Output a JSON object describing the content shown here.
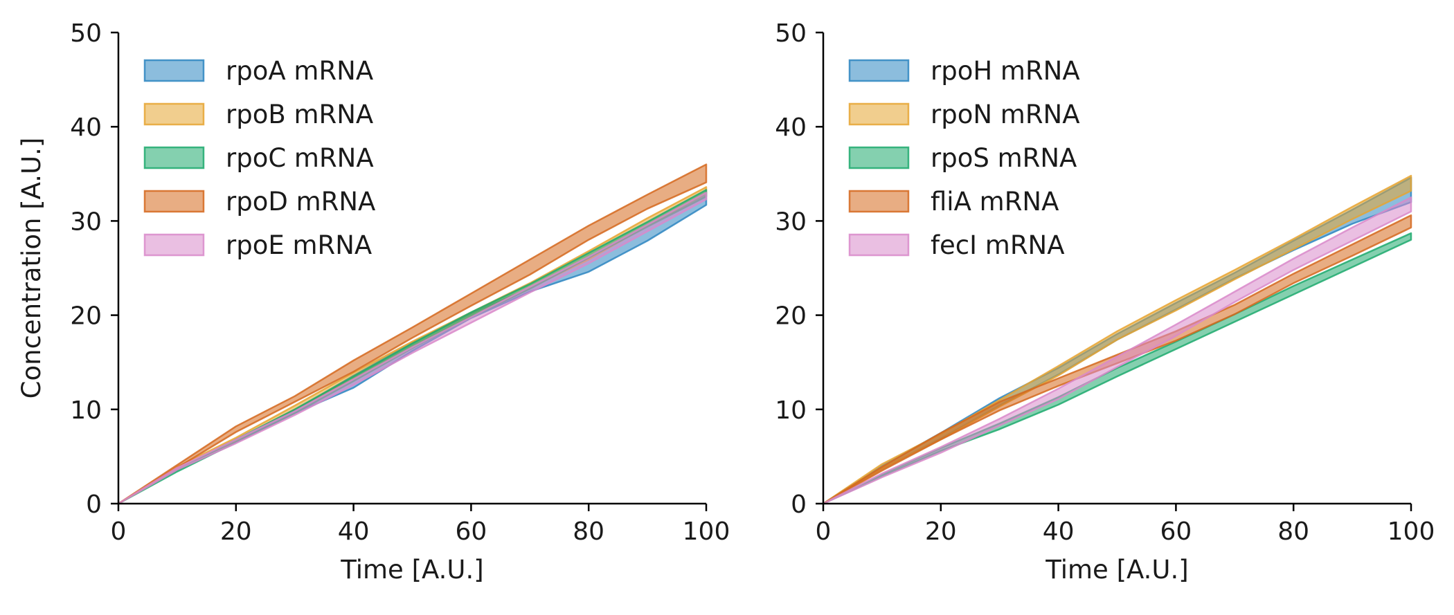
{
  "chart_data": [
    {
      "type": "area",
      "title": "",
      "xlabel": "Time [A.U.]",
      "ylabel": "Concentration [A.U.]",
      "xlim": [
        0,
        100
      ],
      "ylim": [
        0,
        50
      ],
      "xticks": [
        "0",
        "20",
        "40",
        "60",
        "80",
        "100"
      ],
      "yticks": [
        "0",
        "10",
        "20",
        "30",
        "40",
        "50"
      ],
      "grid": false,
      "legend_position": "top-left",
      "x": [
        0,
        10,
        20,
        30,
        40,
        50,
        60,
        70,
        80,
        90,
        100
      ],
      "series": [
        {
          "name": "rpoA mRNA",
          "color": "#2E86C1",
          "lower": [
            0,
            3.6,
            6.5,
            9.6,
            12.3,
            16.2,
            19.7,
            22.5,
            24.6,
            27.9,
            31.7
          ],
          "upper": [
            0,
            3.7,
            6.6,
            9.9,
            13.6,
            17.1,
            20.2,
            22.9,
            26.1,
            29.6,
            33.0
          ]
        },
        {
          "name": "rpoB mRNA",
          "color": "#E6A532",
          "lower": [
            0,
            3.7,
            6.7,
            10.0,
            13.2,
            16.6,
            19.8,
            22.9,
            25.9,
            29.5,
            32.9
          ],
          "upper": [
            0,
            3.9,
            7.0,
            10.4,
            13.9,
            17.2,
            20.3,
            23.4,
            26.8,
            30.3,
            33.6
          ]
        },
        {
          "name": "rpoC mRNA",
          "color": "#1FAA6E",
          "lower": [
            0,
            3.4,
            6.5,
            9.6,
            13.0,
            16.5,
            19.8,
            22.8,
            26.1,
            29.4,
            32.6
          ],
          "upper": [
            0,
            3.6,
            6.8,
            10.0,
            13.5,
            17.0,
            20.3,
            23.3,
            26.6,
            29.9,
            33.3
          ]
        },
        {
          "name": "rpoD mRNA",
          "color": "#D5691E",
          "lower": [
            0,
            3.8,
            7.6,
            10.8,
            14.0,
            17.6,
            21.0,
            24.3,
            28.0,
            31.3,
            34.1
          ],
          "upper": [
            0,
            4.1,
            8.2,
            11.4,
            15.2,
            18.7,
            22.3,
            25.9,
            29.5,
            32.8,
            36.0
          ]
        },
        {
          "name": "rpoE mRNA",
          "color": "#D98ACA",
          "lower": [
            0,
            3.6,
            6.4,
            9.4,
            12.6,
            16.0,
            19.2,
            22.4,
            25.5,
            28.9,
            32.3
          ],
          "upper": [
            0,
            3.8,
            6.8,
            9.8,
            13.2,
            16.6,
            19.8,
            23.0,
            26.2,
            29.6,
            33.0
          ]
        }
      ]
    },
    {
      "type": "area",
      "title": "",
      "xlabel": "Time [A.U.]",
      "ylabel": "",
      "xlim": [
        0,
        100
      ],
      "ylim": [
        0,
        50
      ],
      "xticks": [
        "0",
        "20",
        "40",
        "60",
        "80",
        "100"
      ],
      "yticks": [
        "0",
        "10",
        "20",
        "30",
        "40",
        "50"
      ],
      "grid": false,
      "legend_position": "top-left",
      "x": [
        0,
        10,
        20,
        30,
        40,
        50,
        60,
        70,
        80,
        90,
        100
      ],
      "series": [
        {
          "name": "rpoH mRNA",
          "color": "#2E86C1",
          "lower": [
            0,
            3.7,
            6.9,
            10.4,
            13.7,
            17.4,
            20.6,
            23.9,
            26.9,
            29.7,
            32.0
          ],
          "upper": [
            0,
            4.0,
            7.5,
            11.2,
            14.4,
            18.0,
            21.3,
            24.5,
            27.9,
            31.2,
            34.6
          ]
        },
        {
          "name": "rpoN mRNA",
          "color": "#E6A532",
          "lower": [
            0,
            3.7,
            6.8,
            10.3,
            13.6,
            17.4,
            20.5,
            23.8,
            27.0,
            30.2,
            33.2
          ],
          "upper": [
            0,
            4.2,
            7.4,
            11.0,
            14.6,
            18.3,
            21.6,
            24.8,
            28.1,
            31.5,
            34.8
          ]
        },
        {
          "name": "rpoS mRNA",
          "color": "#1FAA6E",
          "lower": [
            0,
            2.9,
            5.6,
            7.9,
            10.5,
            13.5,
            16.4,
            19.3,
            22.2,
            25.1,
            28.0
          ],
          "upper": [
            0,
            3.1,
            5.9,
            8.5,
            11.3,
            14.4,
            17.2,
            20.1,
            23.1,
            25.9,
            28.7
          ]
        },
        {
          "name": "fliA mRNA",
          "color": "#D5691E",
          "lower": [
            0,
            3.5,
            6.8,
            9.9,
            12.5,
            14.9,
            17.3,
            20.1,
            23.4,
            26.3,
            29.3
          ],
          "upper": [
            0,
            3.9,
            7.5,
            10.8,
            13.3,
            15.8,
            18.3,
            21.1,
            24.4,
            27.5,
            30.6
          ]
        },
        {
          "name": "fecI mRNA",
          "color": "#D98ACA",
          "lower": [
            0,
            2.8,
            5.4,
            8.3,
            11.1,
            14.5,
            17.8,
            21.4,
            24.8,
            27.9,
            31.0
          ],
          "upper": [
            0,
            3.2,
            6.0,
            9.0,
            12.2,
            15.6,
            19.0,
            22.5,
            26.0,
            29.3,
            32.5
          ]
        }
      ]
    }
  ]
}
